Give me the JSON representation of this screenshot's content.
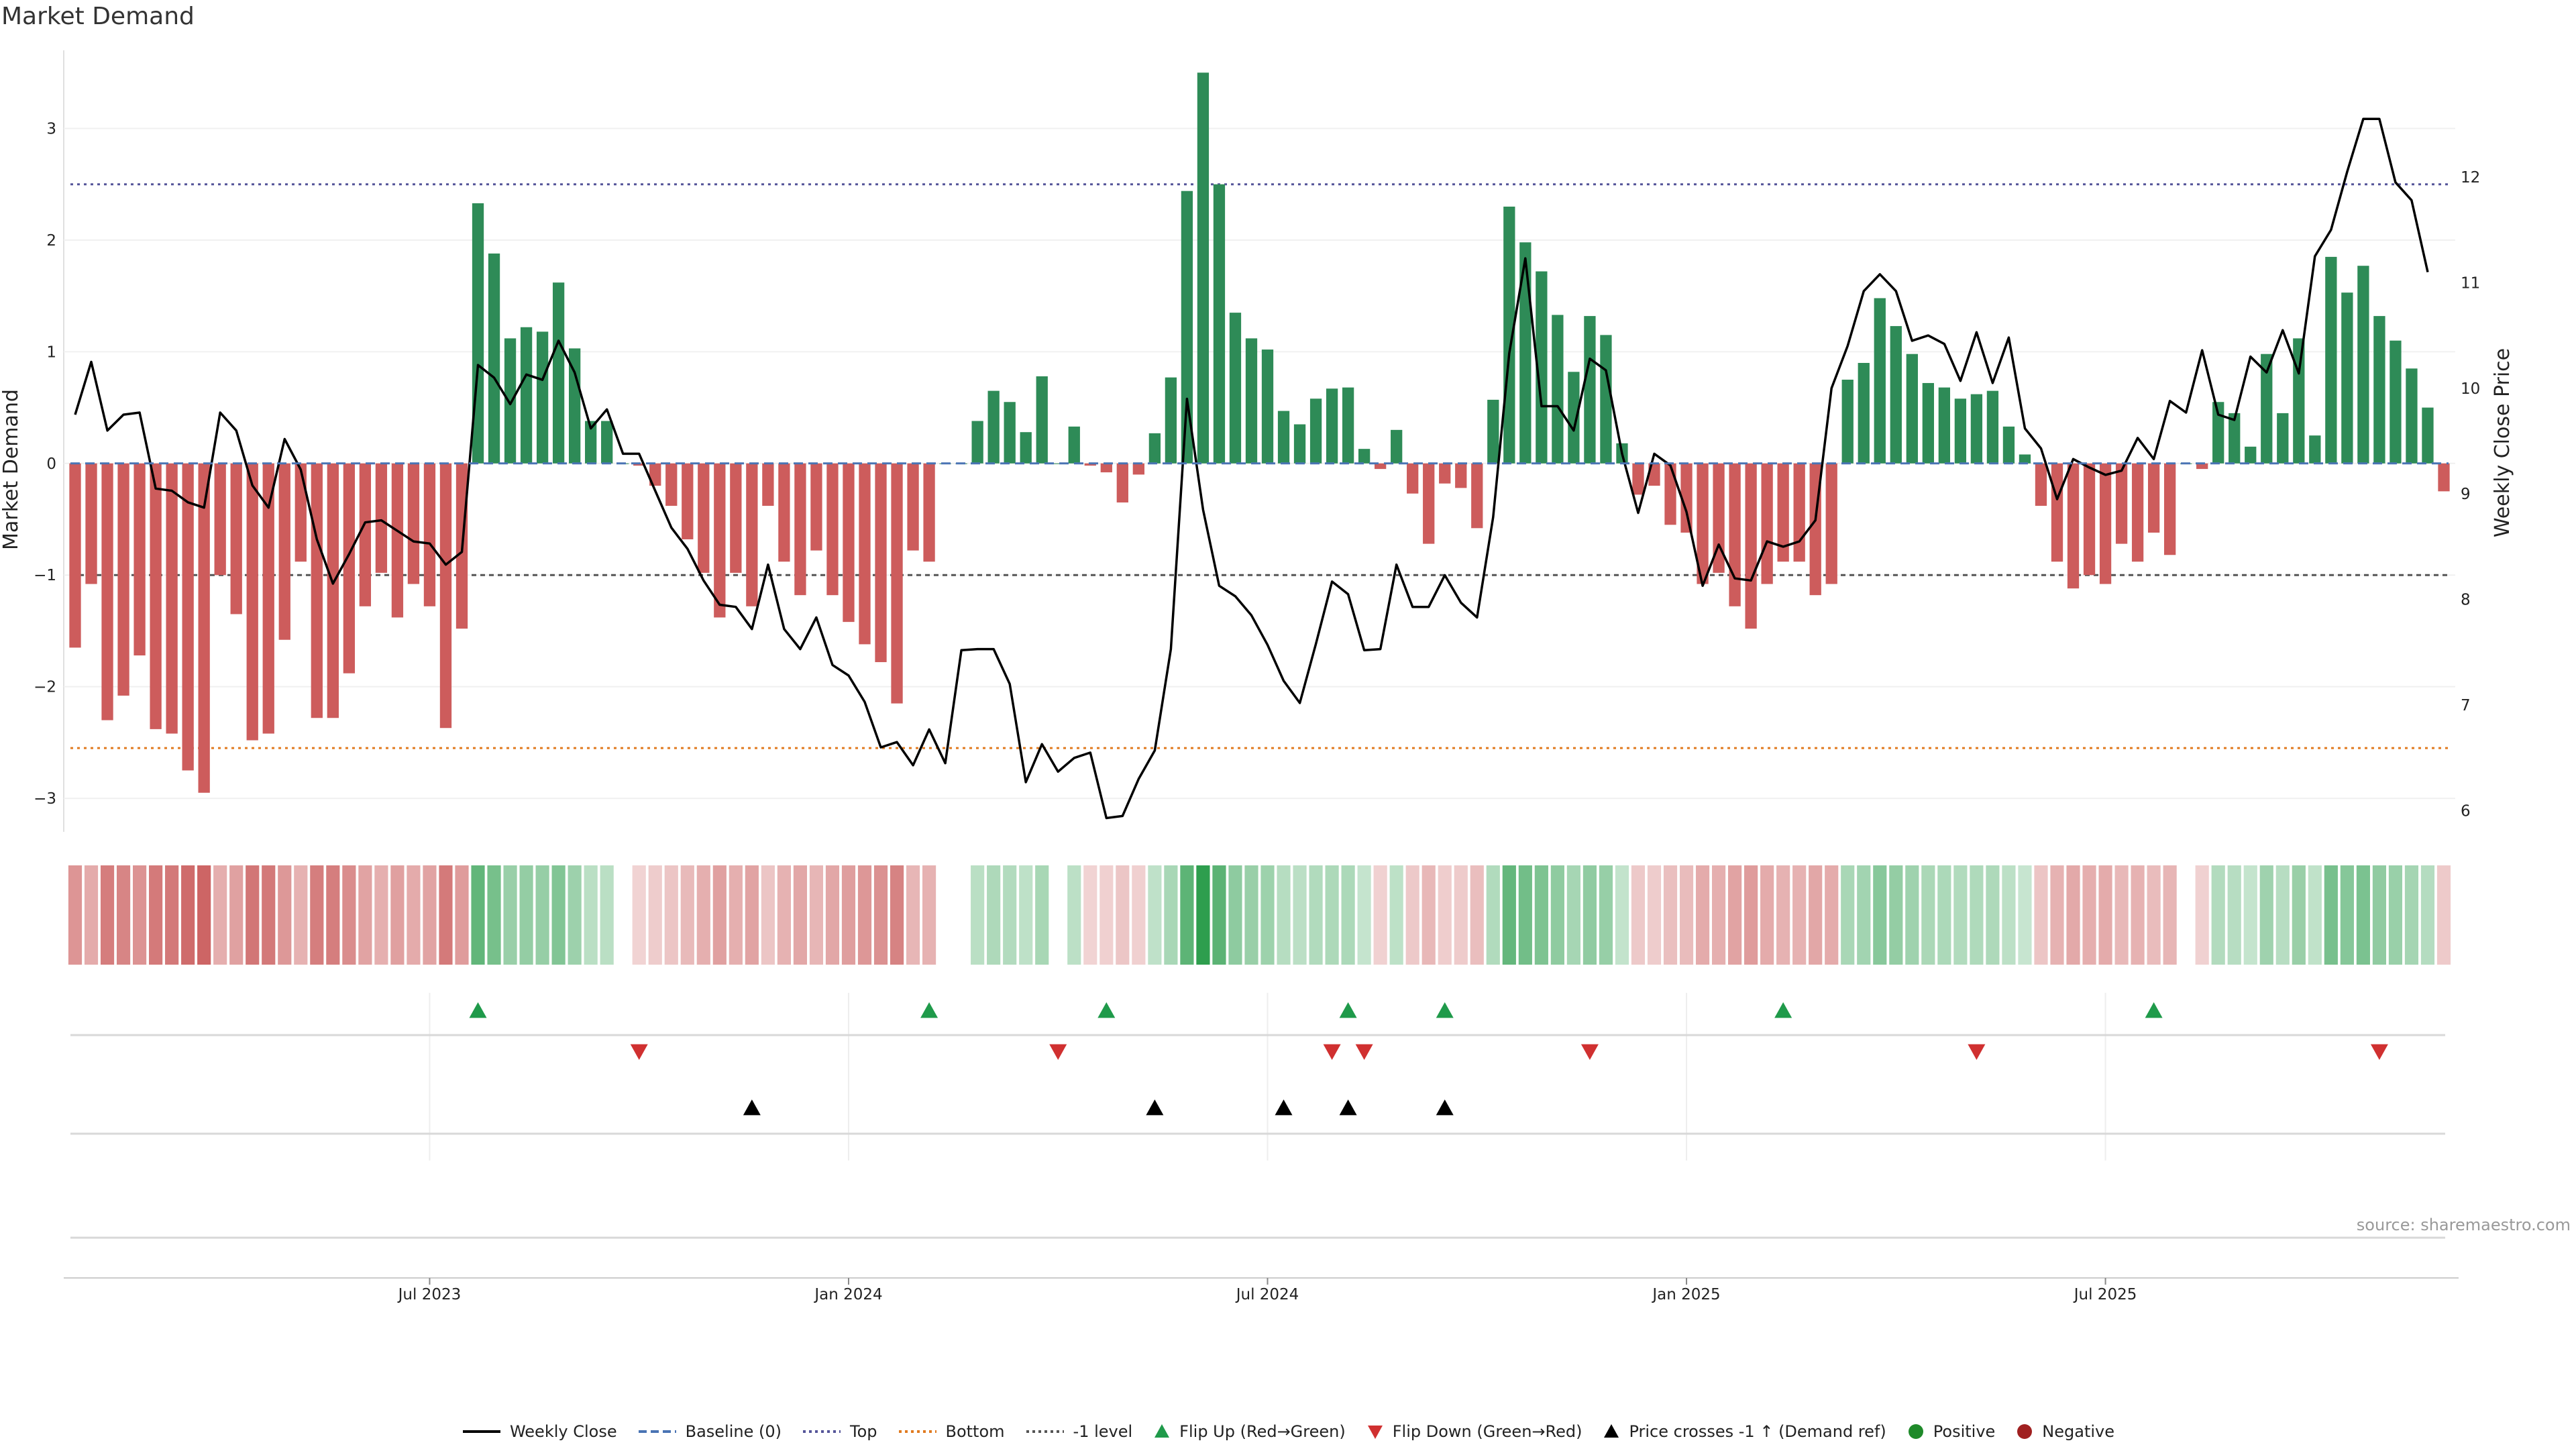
{
  "title": "Market Demand",
  "source": "source: sharemaestro.com",
  "colors": {
    "positive": "#2e8b57",
    "negative": "#cd5c5c",
    "price": "#000000",
    "baseline": "#4a74b4",
    "top": "#555599",
    "bottom": "#e07b20",
    "minus1": "#555555",
    "flip_up": "#1f9a4a",
    "flip_down": "#d03030",
    "cross": "#000000",
    "legend_positive": "#1f8a2a",
    "legend_negative": "#a02020"
  },
  "legend": [
    {
      "label": "Weekly Close",
      "kind": "line-solid",
      "color": "#000000"
    },
    {
      "label": "Baseline (0)",
      "kind": "line-dash",
      "color": "#4a74b4"
    },
    {
      "label": "Top",
      "kind": "line-dot",
      "color": "#555599"
    },
    {
      "label": "Bottom",
      "kind": "line-dot",
      "color": "#e07b20"
    },
    {
      "label": "-1 level",
      "kind": "line-dot",
      "color": "#555555"
    },
    {
      "label": "Flip Up (Red→Green)",
      "kind": "tri-up",
      "color": "#1f9a4a"
    },
    {
      "label": "Flip Down (Green→Red)",
      "kind": "tri-down",
      "color": "#d03030"
    },
    {
      "label": "Price crosses -1 ↑ (Demand ref)",
      "kind": "tri-up",
      "color": "#000000"
    },
    {
      "label": "Positive",
      "kind": "dot",
      "color": "#1f8a2a"
    },
    {
      "label": "Negative",
      "kind": "dot",
      "color": "#a02020"
    }
  ],
  "chart_data": {
    "type": "bar",
    "title": "Market Demand",
    "ylabel": "Market Demand",
    "y2label": "Weekly Close Price",
    "ylim": [
      -3.3,
      3.7
    ],
    "y2lim": [
      5.8,
      13.2
    ],
    "y_ticks": [
      -3,
      -2,
      -1,
      0,
      1,
      2,
      3
    ],
    "y2_ticks": [
      6,
      7,
      8,
      9,
      10,
      11,
      12
    ],
    "x_start_index": 0,
    "x_ticks": [
      {
        "label": "Jul 2023",
        "index": 22
      },
      {
        "label": "Jan 2024",
        "index": 48
      },
      {
        "label": "Jul 2024",
        "index": 74
      },
      {
        "label": "Jan 2025",
        "index": 100
      },
      {
        "label": "Jul 2025",
        "index": 126
      }
    ],
    "reference_lines": {
      "baseline": 0,
      "top": 2.5,
      "bottom": -2.55,
      "minus1": -1
    },
    "demand": [
      -1.65,
      -1.08,
      -2.3,
      -2.08,
      -1.72,
      -2.38,
      -2.42,
      -2.75,
      -2.95,
      -1.0,
      -1.35,
      -2.48,
      -2.42,
      -1.58,
      -0.88,
      -2.28,
      -2.28,
      -1.88,
      -1.28,
      -0.98,
      -1.38,
      -1.08,
      -1.28,
      -2.37,
      -1.48,
      2.33,
      1.88,
      1.12,
      1.22,
      1.18,
      1.62,
      1.03,
      0.38,
      0.38,
      0.0,
      -0.02,
      -0.2,
      -0.38,
      -0.68,
      -0.98,
      -1.38,
      -0.98,
      -1.28,
      -0.38,
      -0.88,
      -1.18,
      -0.78,
      -1.18,
      -1.42,
      -1.62,
      -1.78,
      -2.15,
      -0.78,
      -0.88,
      0.0,
      0.0,
      0.38,
      0.65,
      0.55,
      0.28,
      0.78,
      0.0,
      0.33,
      -0.02,
      -0.08,
      -0.35,
      -0.1,
      0.27,
      0.77,
      2.44,
      3.5,
      2.5,
      1.35,
      1.12,
      1.02,
      0.47,
      0.35,
      0.58,
      0.67,
      0.68,
      0.13,
      -0.05,
      0.3,
      -0.27,
      -0.72,
      -0.18,
      -0.22,
      -0.58,
      0.57,
      2.3,
      1.98,
      1.72,
      1.33,
      0.82,
      1.32,
      1.15,
      0.18,
      -0.28,
      -0.2,
      -0.55,
      -0.62,
      -1.08,
      -0.98,
      -1.28,
      -1.48,
      -1.08,
      -0.88,
      -0.88,
      -1.18,
      -1.08,
      0.75,
      0.9,
      1.48,
      1.23,
      0.98,
      0.72,
      0.68,
      0.58,
      0.62,
      0.65,
      0.33,
      0.08,
      -0.38,
      -0.88,
      -1.12,
      -1.0,
      -1.08,
      -0.72,
      -0.88,
      -0.62,
      -0.82,
      0.0,
      -0.05,
      0.55,
      0.45,
      0.15,
      0.98,
      0.45,
      1.12,
      0.25,
      1.85,
      1.53,
      1.77,
      1.32,
      1.1,
      0.85,
      0.5,
      -0.25
    ],
    "weekly_close": [
      9.75,
      10.25,
      9.6,
      9.75,
      9.77,
      9.05,
      9.03,
      8.92,
      8.87,
      9.77,
      9.6,
      9.08,
      8.87,
      9.52,
      9.23,
      8.57,
      8.15,
      8.43,
      8.73,
      8.75,
      8.65,
      8.55,
      8.53,
      8.33,
      8.45,
      10.22,
      10.1,
      9.85,
      10.13,
      10.08,
      10.45,
      10.15,
      9.62,
      9.8,
      9.38,
      9.38,
      9.03,
      8.68,
      8.48,
      8.18,
      7.95,
      7.93,
      7.72,
      8.33,
      7.72,
      7.53,
      7.83,
      7.38,
      7.28,
      7.03,
      6.6,
      6.65,
      6.43,
      6.77,
      6.45,
      7.52,
      7.53,
      7.53,
      7.2,
      6.27,
      6.63,
      6.37,
      6.5,
      6.55,
      5.93,
      5.95,
      6.3,
      6.57,
      7.53,
      9.9,
      8.85,
      8.13,
      8.03,
      7.85,
      7.57,
      7.23,
      7.02,
      7.58,
      8.17,
      8.05,
      7.52,
      7.53,
      8.33,
      7.93,
      7.93,
      8.23,
      7.97,
      7.83,
      8.78,
      10.33,
      11.23,
      9.83,
      9.83,
      9.6,
      10.28,
      10.17,
      9.38,
      8.82,
      9.38,
      9.27,
      8.83,
      8.13,
      8.52,
      8.2,
      8.18,
      8.55,
      8.5,
      8.55,
      8.75,
      10.0,
      10.4,
      10.92,
      11.08,
      10.92,
      10.45,
      10.5,
      10.42,
      10.07,
      10.53,
      10.05,
      10.48,
      9.62,
      9.43,
      8.95,
      9.33,
      9.25,
      9.18,
      9.22,
      9.53,
      9.33,
      9.88,
      9.77,
      10.36,
      9.75,
      9.7,
      10.3,
      10.15,
      10.55,
      10.14,
      11.25,
      11.5,
      12.05,
      12.55,
      12.55,
      11.95,
      11.78,
      11.1
    ],
    "flip_up_indices": [
      25,
      53,
      64,
      79,
      85,
      106,
      129
    ],
    "flip_down_indices": [
      35,
      61,
      78,
      80,
      94,
      118,
      143
    ],
    "price_cross_indices": [
      42,
      67,
      75,
      79,
      85
    ]
  }
}
